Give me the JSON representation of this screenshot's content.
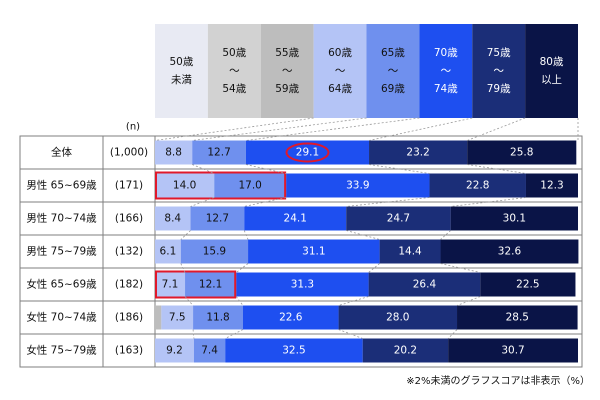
{
  "chart_data": {
    "type": "bar",
    "orientation": "horizontal",
    "stacked": true,
    "n_header": "(n)",
    "legend": [
      {
        "lines": [
          "50歳",
          "未満"
        ],
        "color": "#e8eaf3",
        "text_color": "#111111"
      },
      {
        "lines": [
          "50歳",
          "～",
          "54歳"
        ],
        "color": "#d2d2d2",
        "text_color": "#111111"
      },
      {
        "lines": [
          "55歳",
          "～",
          "59歳"
        ],
        "color": "#bdbdbd",
        "text_color": "#111111"
      },
      {
        "lines": [
          "60歳",
          "～",
          "64歳"
        ],
        "color": "#b4c4f6",
        "text_color": "#111111"
      },
      {
        "lines": [
          "65歳",
          "～",
          "69歳"
        ],
        "color": "#6f90ee",
        "text_color": "#111111"
      },
      {
        "lines": [
          "70歳",
          "～",
          "74歳"
        ],
        "color": "#1e4ff0",
        "text_color": "#ffffff"
      },
      {
        "lines": [
          "75歳",
          "～",
          "79歳"
        ],
        "color": "#1b2e78",
        "text_color": "#ffffff"
      },
      {
        "lines": [
          "80歳",
          "以上"
        ],
        "color": "#0a1447",
        "text_color": "#ffffff"
      }
    ],
    "rows": [
      {
        "label": "全体",
        "n": "(1,000)",
        "segments": [
          {
            "value": 8.8,
            "color": "#b4c4f6",
            "text_color": "#111111"
          },
          {
            "value": 12.7,
            "color": "#6f90ee",
            "text_color": "#111111"
          },
          {
            "value": 29.1,
            "color": "#1e4ff0",
            "text_color": "#ffffff",
            "highlight": "circle"
          },
          {
            "value": 23.2,
            "color": "#1b2e78",
            "text_color": "#ffffff"
          },
          {
            "value": 25.8,
            "color": "#0a1447",
            "text_color": "#ffffff"
          }
        ]
      },
      {
        "label": "男性 65~69歳",
        "n": "(171)",
        "highlight_first": 2,
        "segments": [
          {
            "value": 14.0,
            "color": "#b4c4f6",
            "text_color": "#111111"
          },
          {
            "value": 17.0,
            "color": "#6f90ee",
            "text_color": "#111111"
          },
          {
            "value": 33.9,
            "color": "#1e4ff0",
            "text_color": "#ffffff"
          },
          {
            "value": 22.8,
            "color": "#1b2e78",
            "text_color": "#ffffff"
          },
          {
            "value": 12.3,
            "color": "#0a1447",
            "text_color": "#ffffff"
          }
        ]
      },
      {
        "label": "男性 70~74歳",
        "n": "(166)",
        "segments": [
          {
            "value": 8.4,
            "color": "#b4c4f6",
            "text_color": "#111111"
          },
          {
            "value": 12.7,
            "color": "#6f90ee",
            "text_color": "#111111"
          },
          {
            "value": 24.1,
            "color": "#1e4ff0",
            "text_color": "#ffffff"
          },
          {
            "value": 24.7,
            "color": "#1b2e78",
            "text_color": "#ffffff"
          },
          {
            "value": 30.1,
            "color": "#0a1447",
            "text_color": "#ffffff"
          }
        ]
      },
      {
        "label": "男性 75~79歳",
        "n": "(132)",
        "segments": [
          {
            "value": 6.1,
            "color": "#b4c4f6",
            "text_color": "#111111"
          },
          {
            "value": 15.9,
            "color": "#6f90ee",
            "text_color": "#111111"
          },
          {
            "value": 31.1,
            "color": "#1e4ff0",
            "text_color": "#ffffff"
          },
          {
            "value": 14.4,
            "color": "#1b2e78",
            "text_color": "#ffffff"
          },
          {
            "value": 32.6,
            "color": "#0a1447",
            "text_color": "#ffffff"
          }
        ]
      },
      {
        "label": "女性 65~69歳",
        "n": "(182)",
        "highlight_first": 2,
        "segments": [
          {
            "value": 7.1,
            "color": "#b4c4f6",
            "text_color": "#111111"
          },
          {
            "value": 12.1,
            "color": "#6f90ee",
            "text_color": "#111111"
          },
          {
            "value": 31.3,
            "color": "#1e4ff0",
            "text_color": "#ffffff"
          },
          {
            "value": 26.4,
            "color": "#1b2e78",
            "text_color": "#ffffff"
          },
          {
            "value": 22.5,
            "color": "#0a1447",
            "text_color": "#ffffff"
          }
        ]
      },
      {
        "label": "女性 70~74歳",
        "n": "(186)",
        "segments": [
          {
            "value": 1.5,
            "color": "#bdbdbd",
            "text_color": "#111111",
            "hidden_label": true
          },
          {
            "value": 7.5,
            "color": "#b4c4f6",
            "text_color": "#111111"
          },
          {
            "value": 11.8,
            "color": "#6f90ee",
            "text_color": "#111111"
          },
          {
            "value": 22.6,
            "color": "#1e4ff0",
            "text_color": "#ffffff"
          },
          {
            "value": 28.0,
            "color": "#1b2e78",
            "text_color": "#ffffff"
          },
          {
            "value": 28.5,
            "color": "#0a1447",
            "text_color": "#ffffff"
          }
        ]
      },
      {
        "label": "女性 75~79歳",
        "n": "(163)",
        "segments": [
          {
            "value": 9.2,
            "color": "#b4c4f6",
            "text_color": "#111111"
          },
          {
            "value": 7.4,
            "color": "#6f90ee",
            "text_color": "#111111"
          },
          {
            "value": 32.5,
            "color": "#1e4ff0",
            "text_color": "#ffffff"
          },
          {
            "value": 20.2,
            "color": "#1b2e78",
            "text_color": "#ffffff"
          },
          {
            "value": 30.7,
            "color": "#0a1447",
            "text_color": "#ffffff"
          }
        ]
      }
    ],
    "xlim": [
      0,
      100
    ],
    "highlight_color": "#e0192b",
    "footnote": "※2%未満のグラフスコアは非表示（%）"
  }
}
